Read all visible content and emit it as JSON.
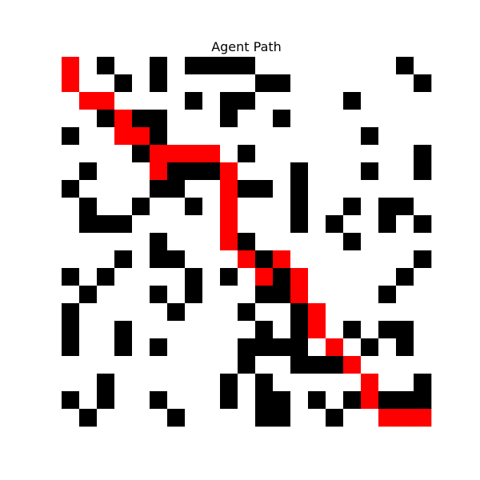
{
  "title": "Agent Path",
  "colors": [
    "#ffffff",
    "#000000",
    "#ff0000"
  ],
  "grid": [
    [
      2,
      0,
      1,
      0,
      0,
      1,
      0,
      1,
      1,
      1,
      1,
      0,
      0,
      0,
      0,
      0,
      0,
      0,
      0,
      1,
      0
    ],
    [
      2,
      0,
      0,
      1,
      0,
      1,
      0,
      0,
      0,
      0,
      0,
      1,
      1,
      0,
      0,
      0,
      0,
      0,
      0,
      0,
      1
    ],
    [
      0,
      2,
      2,
      0,
      0,
      0,
      0,
      1,
      0,
      1,
      1,
      0,
      0,
      0,
      0,
      0,
      1,
      0,
      0,
      0,
      0
    ],
    [
      0,
      0,
      1,
      2,
      1,
      1,
      0,
      0,
      0,
      1,
      0,
      0,
      1,
      0,
      0,
      0,
      0,
      0,
      0,
      0,
      0
    ],
    [
      1,
      0,
      0,
      2,
      2,
      1,
      0,
      0,
      0,
      0,
      0,
      0,
      0,
      0,
      0,
      0,
      0,
      1,
      0,
      0,
      0
    ],
    [
      0,
      0,
      0,
      0,
      1,
      2,
      2,
      2,
      2,
      0,
      1,
      0,
      0,
      0,
      0,
      0,
      0,
      0,
      0,
      0,
      1
    ],
    [
      0,
      1,
      0,
      0,
      0,
      2,
      1,
      1,
      1,
      2,
      0,
      0,
      0,
      1,
      0,
      0,
      0,
      1,
      0,
      0,
      1
    ],
    [
      1,
      0,
      0,
      0,
      0,
      1,
      1,
      0,
      0,
      2,
      1,
      1,
      0,
      1,
      0,
      0,
      0,
      0,
      0,
      0,
      0
    ],
    [
      0,
      1,
      0,
      0,
      1,
      0,
      0,
      1,
      0,
      2,
      0,
      0,
      0,
      1,
      0,
      0,
      1,
      0,
      1,
      1,
      0
    ],
    [
      0,
      1,
      1,
      1,
      0,
      0,
      0,
      0,
      0,
      2,
      0,
      0,
      0,
      1,
      0,
      1,
      0,
      0,
      1,
      0,
      1
    ],
    [
      0,
      0,
      0,
      0,
      0,
      1,
      0,
      0,
      0,
      2,
      1,
      0,
      0,
      0,
      0,
      0,
      1,
      0,
      0,
      0,
      0
    ],
    [
      0,
      0,
      0,
      1,
      0,
      1,
      1,
      0,
      0,
      0,
      2,
      1,
      2,
      0,
      0,
      0,
      0,
      0,
      0,
      0,
      1
    ],
    [
      1,
      0,
      1,
      0,
      0,
      0,
      0,
      1,
      0,
      1,
      0,
      2,
      1,
      2,
      0,
      0,
      0,
      0,
      0,
      1,
      0
    ],
    [
      0,
      1,
      0,
      0,
      0,
      1,
      0,
      1,
      0,
      0,
      0,
      1,
      1,
      2,
      0,
      0,
      0,
      0,
      1,
      0,
      0
    ],
    [
      1,
      0,
      0,
      0,
      0,
      0,
      1,
      0,
      0,
      0,
      1,
      0,
      0,
      1,
      2,
      0,
      0,
      0,
      0,
      0,
      0
    ],
    [
      1,
      0,
      0,
      1,
      0,
      0,
      0,
      0,
      0,
      0,
      0,
      1,
      0,
      1,
      2,
      0,
      1,
      0,
      1,
      1,
      0
    ],
    [
      1,
      0,
      0,
      1,
      0,
      1,
      0,
      0,
      0,
      0,
      1,
      1,
      1,
      1,
      0,
      2,
      0,
      1,
      0,
      1,
      0
    ],
    [
      0,
      0,
      0,
      0,
      0,
      0,
      0,
      0,
      0,
      0,
      1,
      0,
      0,
      1,
      1,
      1,
      2,
      0,
      0,
      0,
      0
    ],
    [
      0,
      0,
      1,
      0,
      0,
      0,
      0,
      0,
      0,
      1,
      0,
      1,
      0,
      0,
      0,
      0,
      0,
      2,
      0,
      0,
      1
    ],
    [
      1,
      0,
      1,
      0,
      0,
      1,
      0,
      0,
      0,
      1,
      0,
      1,
      1,
      0,
      1,
      0,
      1,
      2,
      1,
      1,
      1
    ],
    [
      0,
      1,
      0,
      0,
      0,
      0,
      1,
      0,
      0,
      0,
      0,
      1,
      1,
      0,
      0,
      1,
      0,
      0,
      2,
      2,
      2
    ]
  ]
}
